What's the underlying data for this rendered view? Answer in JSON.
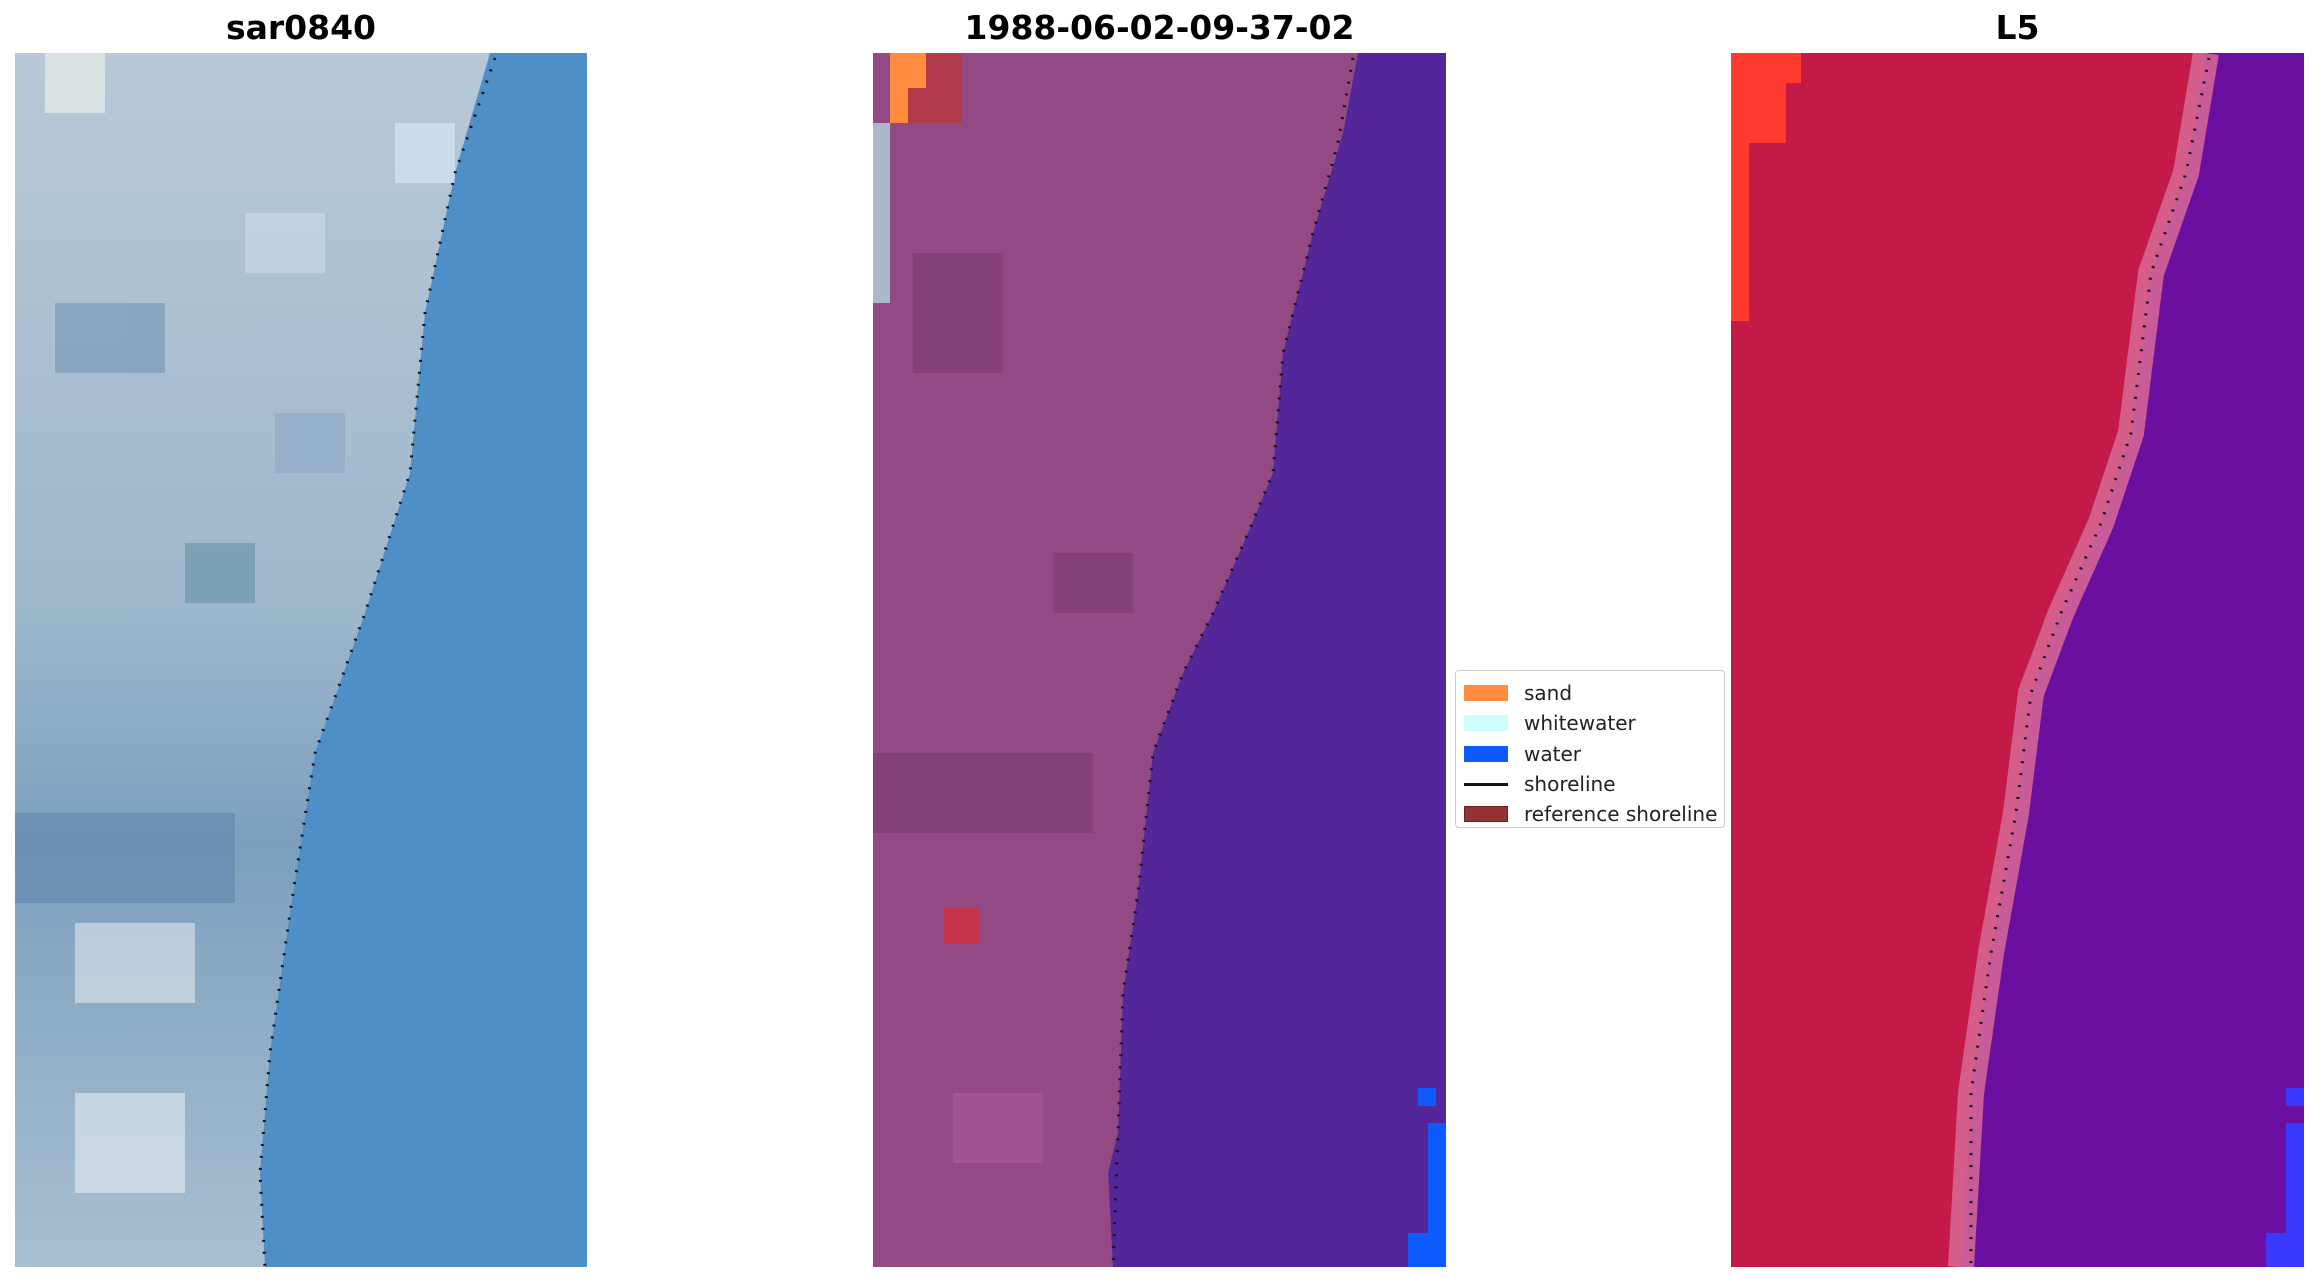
{
  "panels": [
    {
      "title": "sar0840",
      "description": "RGB satellite image of coastline with detected shoreline overlay"
    },
    {
      "title": "1988-06-02-09-37-02",
      "description": "Classified image (sand, whitewater, water) with shoreline"
    },
    {
      "title": "L5",
      "description": "Water index image with shoreline"
    }
  ],
  "legend": {
    "items": [
      {
        "label": "sand",
        "color": "#ff8c3f",
        "kind": "patch"
      },
      {
        "label": "whitewater",
        "color": "#cdfdfd",
        "kind": "patch"
      },
      {
        "label": "water",
        "color": "#0d5bff",
        "kind": "patch"
      },
      {
        "label": "shoreline",
        "color": "#111111",
        "kind": "line"
      },
      {
        "label": "reference shoreline",
        "color": "#943333",
        "kind": "patch"
      }
    ]
  },
  "colors": {
    "land_classified": "#934a84",
    "water_classified": "#53279a",
    "land_index": "#c41a48",
    "water_index": "#6a0fa0",
    "water_rgb": "#4f8fc8"
  }
}
